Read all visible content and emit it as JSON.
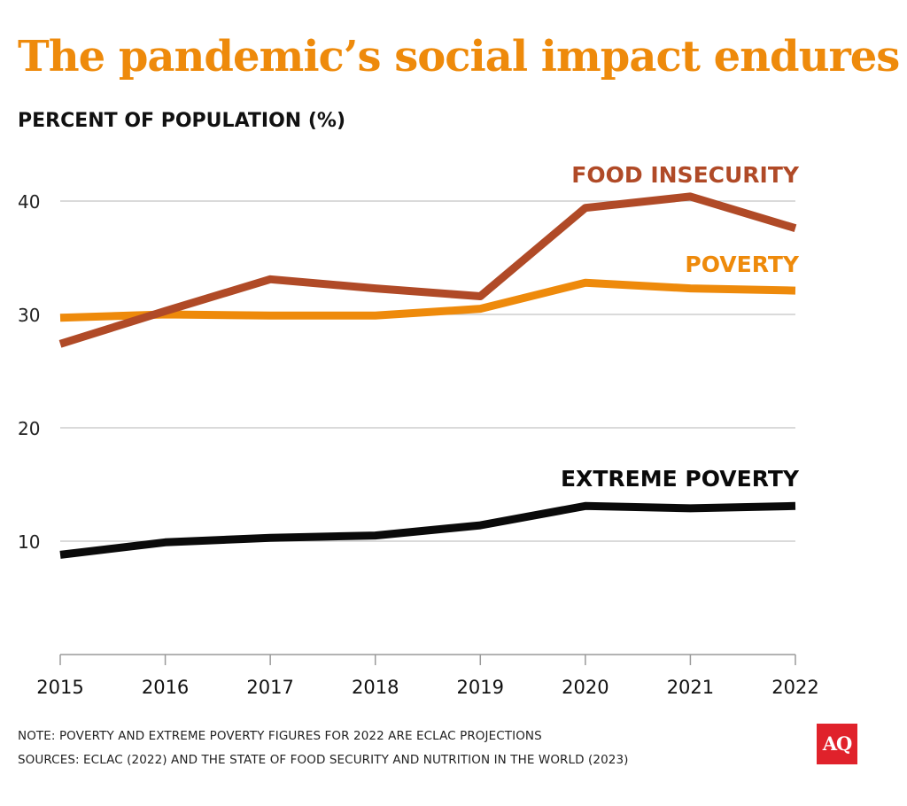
{
  "title": "The pandemic’s social impact endures",
  "chart_data": {
    "type": "line",
    "title": "The pandemic’s social impact endures",
    "ylabel": "PERCENT OF POPULATION (%)",
    "xlabel": "",
    "ylim": [
      0,
      40
    ],
    "yticks": [
      "10",
      "20",
      "30",
      "40"
    ],
    "categories": [
      "2015",
      "2016",
      "2017",
      "2018",
      "2019",
      "2020",
      "2021",
      "2022"
    ],
    "grid": true,
    "series": [
      {
        "name": "FOOD INSECURITY",
        "color": "#b04a27",
        "values": [
          27.4,
          30.3,
          33.1,
          32.3,
          31.6,
          39.4,
          40.4,
          37.6
        ]
      },
      {
        "name": "POVERTY",
        "color": "#ee8a0b",
        "values": [
          29.7,
          30.0,
          29.9,
          29.9,
          30.5,
          32.8,
          32.3,
          32.1
        ]
      },
      {
        "name": "EXTREME POVERTY",
        "color": "#0a0a0a",
        "values": [
          8.8,
          9.9,
          10.3,
          10.5,
          11.4,
          13.1,
          12.9,
          13.1
        ]
      }
    ]
  },
  "notes": {
    "note": "NOTE: POVERTY AND EXTREME POVERTY FIGURES FOR 2022 ARE ECLAC PROJECTIONS",
    "sources": "SOURCES: ECLAC (2022) AND THE STATE OF FOOD SECURITY AND NUTRITION IN THE WORLD (2023)"
  },
  "logo": "AQ"
}
